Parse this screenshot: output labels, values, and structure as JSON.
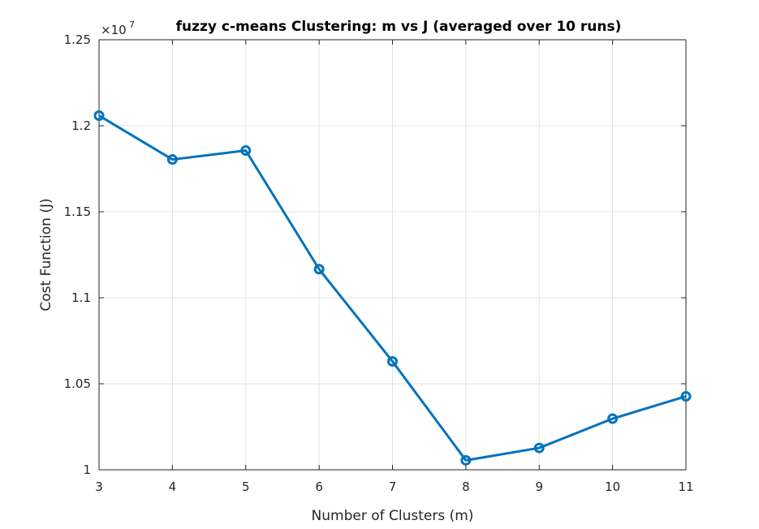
{
  "chart_data": {
    "type": "line",
    "title": "fuzzy c-means Clustering: m vs J (averaged over 10 runs)",
    "xlabel": "Number of Clusters (m)",
    "ylabel": "Cost Function (J)",
    "y_exponent_base": "×10",
    "y_exponent_power": "7",
    "x": [
      3,
      4,
      5,
      6,
      7,
      8,
      9,
      10,
      11
    ],
    "series": [
      {
        "values": [
          1.2059,
          1.1804,
          1.1856,
          1.1166,
          1.063,
          1.0055,
          1.0127,
          1.0297,
          1.0427
        ],
        "color": "#0072BD",
        "marker": "circle"
      }
    ],
    "xlim": [
      3,
      11
    ],
    "ylim": [
      1.0,
      1.25
    ],
    "xticks": [
      "3",
      "4",
      "5",
      "6",
      "7",
      "8",
      "9",
      "10",
      "11"
    ],
    "yticks": [
      "1",
      "1.05",
      "1.1",
      "1.15",
      "1.2",
      "1.25"
    ],
    "grid": true
  }
}
